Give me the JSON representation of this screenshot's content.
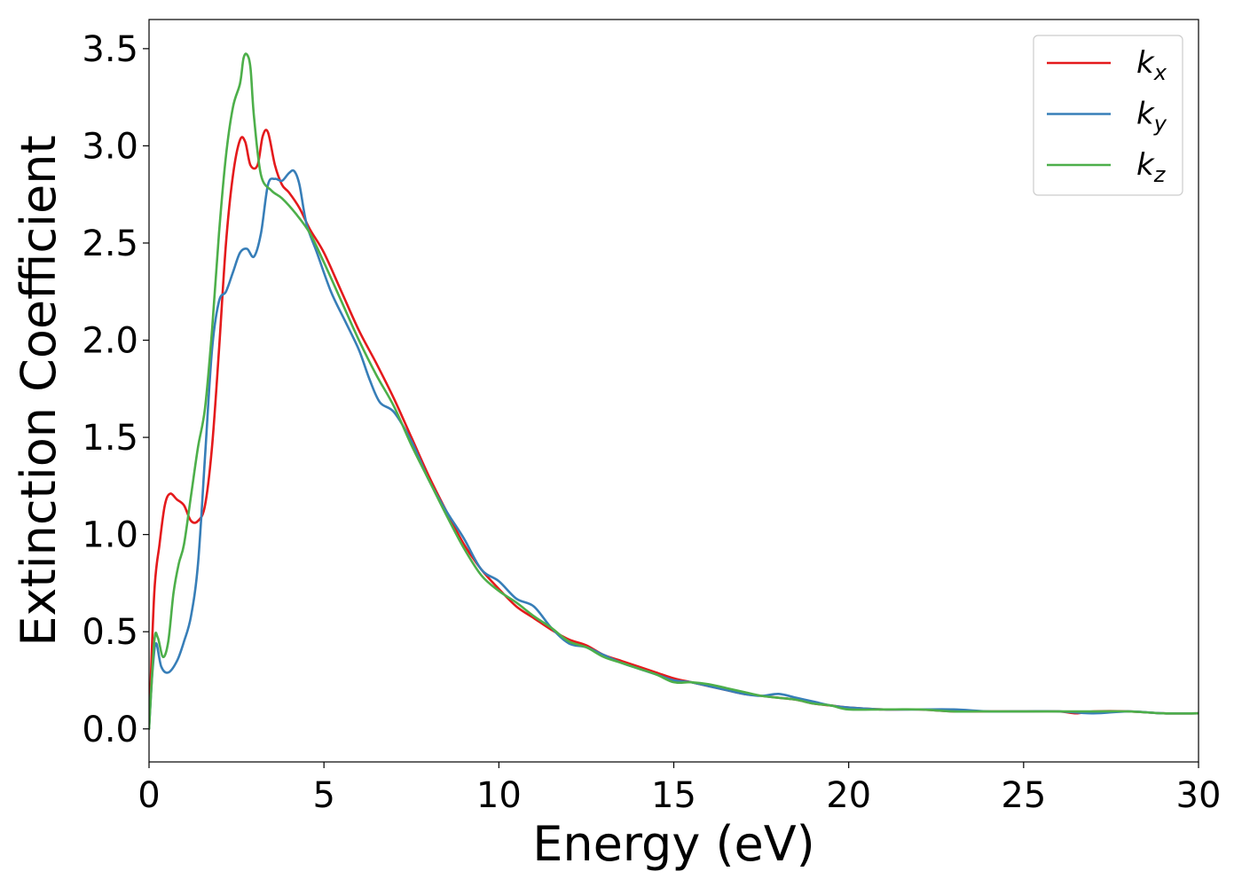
{
  "chart_data": {
    "type": "line",
    "xlabel": "Energy (eV)",
    "ylabel": "Extinction Coefficient",
    "xlim": [
      0,
      30
    ],
    "ylim": [
      -0.17,
      3.65
    ],
    "xticks": [
      0,
      5,
      10,
      15,
      20,
      25,
      30
    ],
    "yticks": [
      0.0,
      0.5,
      1.0,
      1.5,
      2.0,
      2.5,
      3.0,
      3.5
    ],
    "xtick_labels": [
      "0",
      "5",
      "10",
      "15",
      "20",
      "25",
      "30"
    ],
    "ytick_labels": [
      "0.0",
      "0.5",
      "1.0",
      "1.5",
      "2.0",
      "2.5",
      "3.0",
      "3.5"
    ],
    "grid": false,
    "legend_position": "top-right",
    "series": [
      {
        "name": "k_x",
        "label_base": "k",
        "label_sub": "x",
        "color": "#e41a1c",
        "x": [
          0,
          0.15,
          0.3,
          0.45,
          0.6,
          0.8,
          1.0,
          1.2,
          1.4,
          1.6,
          1.8,
          2.0,
          2.2,
          2.4,
          2.6,
          2.75,
          2.9,
          3.1,
          3.25,
          3.4,
          3.6,
          3.8,
          4.0,
          4.3,
          4.6,
          5.0,
          5.5,
          6.0,
          6.5,
          7.0,
          7.5,
          8.0,
          8.5,
          9.0,
          9.5,
          10.0,
          10.5,
          11.0,
          11.5,
          12.0,
          12.5,
          13.0,
          13.5,
          14.0,
          14.5,
          15.0,
          15.5,
          16.0,
          16.5,
          17.0,
          17.5,
          18.0,
          18.5,
          19.0,
          19.5,
          20.0,
          21.0,
          22.0,
          23.0,
          24.0,
          25.0,
          26.0,
          26.5,
          27.0,
          28.0,
          29.0,
          30.0
        ],
        "y": [
          0.0,
          0.7,
          0.95,
          1.15,
          1.21,
          1.18,
          1.15,
          1.07,
          1.07,
          1.15,
          1.45,
          1.95,
          2.5,
          2.85,
          3.03,
          3.02,
          2.9,
          2.9,
          3.05,
          3.07,
          2.9,
          2.8,
          2.76,
          2.68,
          2.57,
          2.45,
          2.25,
          2.05,
          1.88,
          1.7,
          1.5,
          1.3,
          1.12,
          0.95,
          0.82,
          0.72,
          0.63,
          0.57,
          0.51,
          0.46,
          0.43,
          0.38,
          0.35,
          0.32,
          0.29,
          0.26,
          0.24,
          0.22,
          0.2,
          0.18,
          0.17,
          0.16,
          0.15,
          0.13,
          0.12,
          0.11,
          0.1,
          0.1,
          0.09,
          0.09,
          0.09,
          0.09,
          0.08,
          0.09,
          0.09,
          0.08,
          0.08
        ]
      },
      {
        "name": "k_y",
        "label_base": "k",
        "label_sub": "y",
        "color": "#377eb8",
        "x": [
          0,
          0.1,
          0.2,
          0.35,
          0.55,
          0.8,
          1.0,
          1.2,
          1.4,
          1.6,
          1.8,
          2.0,
          2.2,
          2.4,
          2.6,
          2.8,
          3.0,
          3.2,
          3.4,
          3.6,
          3.8,
          4.0,
          4.15,
          4.3,
          4.5,
          4.8,
          5.2,
          5.6,
          6.0,
          6.3,
          6.6,
          7.0,
          7.5,
          8.0,
          8.5,
          9.0,
          9.5,
          10.0,
          10.5,
          11.0,
          11.5,
          12.0,
          12.5,
          13.0,
          13.5,
          14.0,
          14.5,
          15.0,
          15.5,
          16.0,
          16.5,
          17.0,
          17.5,
          18.0,
          18.5,
          19.0,
          19.5,
          20.0,
          21.0,
          22.0,
          23.0,
          24.0,
          25.0,
          26.0,
          27.0,
          28.0,
          29.0,
          30.0
        ],
        "y": [
          0.0,
          0.3,
          0.44,
          0.32,
          0.29,
          0.35,
          0.45,
          0.58,
          0.85,
          1.4,
          1.95,
          2.2,
          2.25,
          2.35,
          2.45,
          2.47,
          2.43,
          2.55,
          2.8,
          2.83,
          2.82,
          2.86,
          2.87,
          2.8,
          2.6,
          2.45,
          2.25,
          2.1,
          1.95,
          1.8,
          1.68,
          1.63,
          1.48,
          1.28,
          1.12,
          0.98,
          0.82,
          0.76,
          0.67,
          0.63,
          0.52,
          0.44,
          0.42,
          0.38,
          0.34,
          0.31,
          0.28,
          0.25,
          0.24,
          0.22,
          0.2,
          0.18,
          0.17,
          0.18,
          0.16,
          0.14,
          0.12,
          0.11,
          0.1,
          0.1,
          0.1,
          0.09,
          0.09,
          0.09,
          0.08,
          0.09,
          0.08,
          0.08
        ]
      },
      {
        "name": "k_z",
        "label_base": "k",
        "label_sub": "z",
        "color": "#4daf4a",
        "x": [
          0,
          0.15,
          0.25,
          0.4,
          0.55,
          0.7,
          0.85,
          1.0,
          1.2,
          1.4,
          1.6,
          1.8,
          2.0,
          2.2,
          2.4,
          2.6,
          2.7,
          2.8,
          2.9,
          3.0,
          3.2,
          3.5,
          3.8,
          4.2,
          4.6,
          5.0,
          5.5,
          6.0,
          6.5,
          7.0,
          7.5,
          8.0,
          8.5,
          9.0,
          9.5,
          10.0,
          10.5,
          11.0,
          11.5,
          12.0,
          12.5,
          13.0,
          13.5,
          14.0,
          14.5,
          15.0,
          15.5,
          16.0,
          16.5,
          17.0,
          17.5,
          18.0,
          18.5,
          19.0,
          19.5,
          20.0,
          21.0,
          22.0,
          23.0,
          24.0,
          25.0,
          26.0,
          27.0,
          28.0,
          29.0,
          30.0
        ],
        "y": [
          0.0,
          0.45,
          0.47,
          0.37,
          0.45,
          0.7,
          0.85,
          0.95,
          1.2,
          1.45,
          1.65,
          2.05,
          2.55,
          2.95,
          3.2,
          3.32,
          3.45,
          3.47,
          3.4,
          3.15,
          2.85,
          2.77,
          2.73,
          2.65,
          2.55,
          2.4,
          2.2,
          2.0,
          1.82,
          1.66,
          1.46,
          1.28,
          1.1,
          0.93,
          0.79,
          0.71,
          0.65,
          0.58,
          0.52,
          0.45,
          0.42,
          0.37,
          0.34,
          0.31,
          0.28,
          0.24,
          0.24,
          0.23,
          0.21,
          0.19,
          0.17,
          0.16,
          0.15,
          0.13,
          0.12,
          0.1,
          0.1,
          0.1,
          0.09,
          0.09,
          0.09,
          0.09,
          0.09,
          0.09,
          0.08,
          0.08
        ]
      }
    ]
  }
}
